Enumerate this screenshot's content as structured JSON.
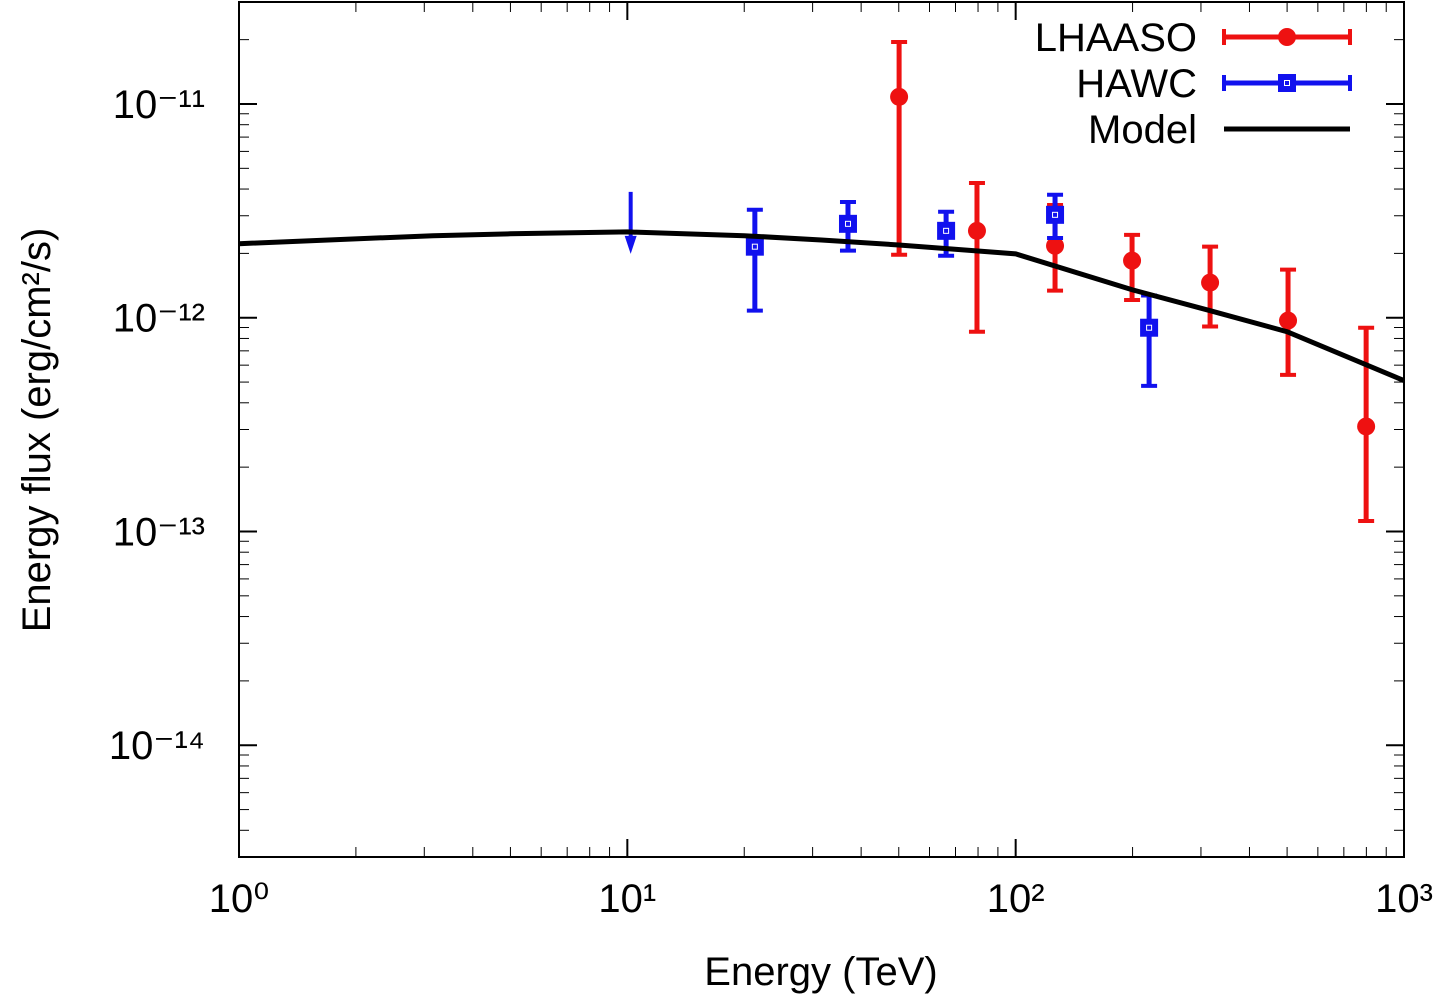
{
  "chart_data": {
    "type": "scatter",
    "xlabel": "Energy (TeV)",
    "ylabel": "Energy flux (erg/cm²/s)",
    "log_x": true,
    "log_y": true,
    "xlim": [
      1,
      1000
    ],
    "ylim": [
      3e-15,
      3e-11
    ],
    "xticks": [
      {
        "value": 1,
        "label": "10⁰"
      },
      {
        "value": 10,
        "label": "10¹"
      },
      {
        "value": 100,
        "label": "10²"
      },
      {
        "value": 1000,
        "label": "10³"
      }
    ],
    "yticks": [
      {
        "value": 1e-14,
        "label": "10⁻¹⁴"
      },
      {
        "value": 1e-13,
        "label": "10⁻¹³"
      },
      {
        "value": 1e-12,
        "label": "10⁻¹²"
      },
      {
        "value": 1e-11,
        "label": "10⁻¹¹"
      }
    ],
    "legend": "upper right",
    "series": [
      {
        "name": "LHAASO",
        "color": "#ee1111",
        "marker": "circle",
        "x": [
          50.1,
          79.5,
          126.3,
          199.4,
          316.7,
          502.8,
          798.9
        ],
        "values": [
          1.08e-11,
          2.55e-12,
          2.17e-12,
          1.85e-12,
          1.46e-12,
          9.7e-13,
          3.1e-13
        ],
        "lower": [
          1.97e-12,
          8.6e-13,
          1.34e-12,
          1.21e-12,
          9.1e-13,
          5.4e-13,
          1.12e-13
        ],
        "upper": [
          1.95e-11,
          4.27e-12,
          3.37e-12,
          2.44e-12,
          2.15e-12,
          1.68e-12,
          8.98e-13
        ]
      },
      {
        "name": "HAWC",
        "color": "#1111ee",
        "marker": "square",
        "x": [
          10.2,
          21.3,
          37.0,
          66.2,
          126.3,
          220.6
        ],
        "values": [
          3.88e-12,
          2.15e-12,
          2.75e-12,
          2.55e-12,
          3.03e-12,
          8.98e-13
        ],
        "upper_limit": [
          true,
          false,
          false,
          false,
          false,
          false
        ],
        "lower": [
          null,
          1.08e-12,
          2.06e-12,
          1.95e-12,
          2.36e-12,
          4.8e-13
        ],
        "upper": [
          null,
          3.2e-12,
          3.48e-12,
          3.13e-12,
          3.76e-12,
          1.27e-12
        ]
      },
      {
        "name": "Model",
        "color": "#000000",
        "marker": "line",
        "x": [
          1,
          3.16,
          5,
          10,
          20,
          31.6,
          50,
          100,
          200,
          316,
          500,
          1000
        ],
        "values": [
          2.22e-12,
          2.42e-12,
          2.47e-12,
          2.52e-12,
          2.42e-12,
          2.31e-12,
          2.19e-12,
          1.99e-12,
          1.35e-12,
          1.08e-12,
          8.6e-13,
          5.08e-13
        ]
      }
    ]
  }
}
